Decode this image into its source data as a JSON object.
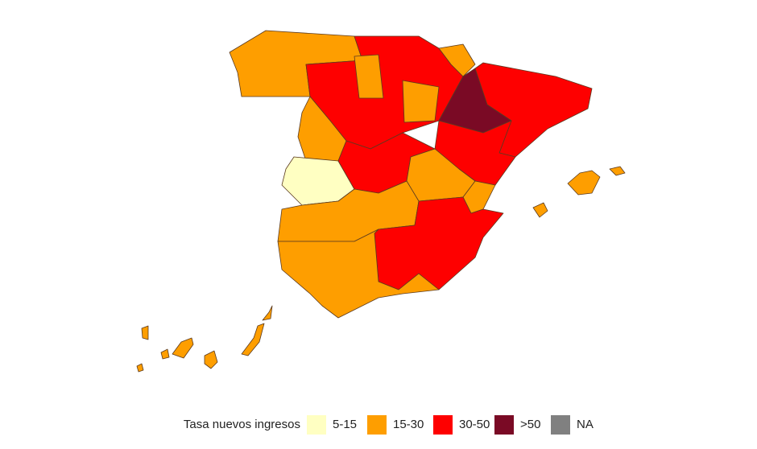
{
  "legend": {
    "title": "Tasa nuevos ingresos",
    "items": [
      {
        "label": "5-15",
        "color": "#ffffc2"
      },
      {
        "label": "15-30",
        "color": "#fe9e00"
      },
      {
        "label": "30-50",
        "color": "#fe0000"
      },
      {
        "label": ">50",
        "color": "#7a0a25"
      },
      {
        "label": "NA",
        "color": "#808080"
      }
    ]
  }
}
